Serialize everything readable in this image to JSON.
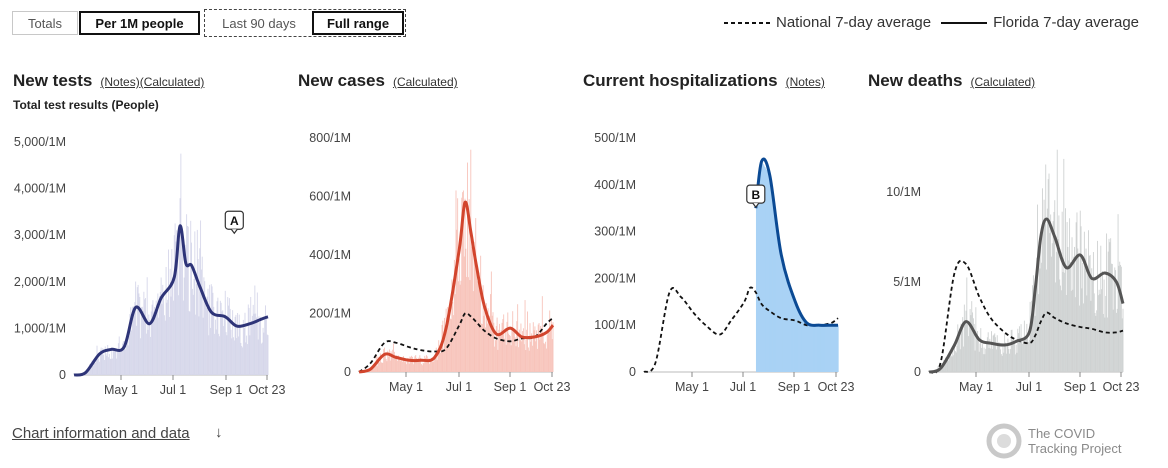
{
  "controls": {
    "metric_toggle": [
      {
        "label": "Totals",
        "selected": false
      },
      {
        "label": "Per 1M people",
        "selected": true
      }
    ],
    "range_toggle": [
      {
        "label": "Last 90 days",
        "selected": false
      },
      {
        "label": "Full range",
        "selected": true
      }
    ]
  },
  "legend": {
    "national": "National 7-day average",
    "state": "Florida 7-day average"
  },
  "panels": {
    "tests": {
      "title": "New tests",
      "notes": "(Notes)",
      "calc": "(Calculated)",
      "subtitle": "Total test results (People)",
      "marker": "A"
    },
    "cases": {
      "title": "New cases",
      "calc": "(Calculated)"
    },
    "hosp": {
      "title": "Current hospitalizations",
      "notes": "(Notes)",
      "marker": "B"
    },
    "deaths": {
      "title": "New deaths",
      "calc": "(Calculated)"
    }
  },
  "footer": {
    "link": "Chart information and data",
    "arrow": "↓",
    "brand_line1": "The COVID",
    "brand_line2": "Tracking Project"
  },
  "colors": {
    "tests": "#2e3478",
    "tests_bar": "#d6d7ea",
    "cases": "#d2452d",
    "cases_bar": "#f7c4bb",
    "hosp": "#0b4a94",
    "hosp_bar": "#a9d2f5",
    "deaths": "#555555",
    "deaths_bar": "#cfd2d2",
    "national": "#111111"
  },
  "chart_data": [
    {
      "type": "line",
      "title": "New tests",
      "x_ticks": [
        "May 1",
        "Jul 1",
        "Sep 1",
        "Oct 23"
      ],
      "y_ticks": [
        "0",
        "1,000/1M",
        "2,000/1M",
        "3,000/1M",
        "4,000/1M",
        "5,000/1M"
      ],
      "ylim": [
        0,
        5000
      ],
      "x": [
        "Mar 1",
        "Mar 15",
        "Apr 1",
        "Apr 15",
        "May 1",
        "May 15",
        "Jun 1",
        "Jun 15",
        "Jul 1",
        "Jul 8",
        "Jul 15",
        "Jul 22",
        "Aug 1",
        "Aug 15",
        "Sep 1",
        "Sep 15",
        "Oct 1",
        "Oct 15",
        "Oct 23"
      ],
      "series": [
        {
          "name": "Florida 7-day average",
          "values": [
            0,
            50,
            450,
            550,
            600,
            1450,
            1100,
            1650,
            2100,
            3200,
            2400,
            2350,
            1900,
            1350,
            1250,
            1050,
            1100,
            1200,
            1250
          ]
        }
      ]
    },
    {
      "type": "line",
      "title": "New cases",
      "x_ticks": [
        "May 1",
        "Jul 1",
        "Sep 1",
        "Oct 23"
      ],
      "y_ticks": [
        "0",
        "200/1M",
        "400/1M",
        "600/1M",
        "800/1M"
      ],
      "ylim": [
        0,
        800
      ],
      "x": [
        "Mar 1",
        "Mar 15",
        "Apr 1",
        "Apr 15",
        "May 1",
        "May 15",
        "Jun 1",
        "Jun 15",
        "Jul 1",
        "Jul 8",
        "Jul 15",
        "Jul 22",
        "Aug 1",
        "Aug 15",
        "Sep 1",
        "Sep 15",
        "Oct 1",
        "Oct 15",
        "Oct 23"
      ],
      "series": [
        {
          "name": "Florida 7-day average",
          "values": [
            0,
            10,
            60,
            50,
            40,
            40,
            50,
            150,
            420,
            580,
            480,
            360,
            220,
            130,
            150,
            120,
            120,
            135,
            160
          ]
        },
        {
          "name": "National 7-day average",
          "values": [
            0,
            30,
            100,
            100,
            85,
            75,
            70,
            80,
            160,
            200,
            190,
            170,
            140,
            115,
            105,
            115,
            120,
            165,
            185
          ]
        }
      ]
    },
    {
      "type": "line",
      "title": "Current hospitalizations",
      "x_ticks": [
        "May 1",
        "Jul 1",
        "Sep 1",
        "Oct 23"
      ],
      "y_ticks": [
        "0",
        "100/1M",
        "200/1M",
        "300/1M",
        "400/1M",
        "500/1M"
      ],
      "ylim": [
        0,
        500
      ],
      "x": [
        "Mar 1",
        "Mar 15",
        "Apr 1",
        "Apr 15",
        "May 1",
        "May 15",
        "Jun 1",
        "Jun 15",
        "Jul 1",
        "Jul 8",
        "Jul 15",
        "Jul 22",
        "Aug 1",
        "Aug 15",
        "Sep 1",
        "Sep 15",
        "Oct 1",
        "Oct 15",
        "Oct 23"
      ],
      "series": [
        {
          "name": "Florida 7-day average",
          "values": [
            null,
            null,
            null,
            null,
            null,
            null,
            null,
            null,
            null,
            null,
            350,
            450,
            420,
            250,
            150,
            105,
            100,
            100,
            100
          ]
        },
        {
          "name": "National 7-day average",
          "values": [
            0,
            20,
            170,
            160,
            125,
            100,
            80,
            110,
            150,
            180,
            170,
            145,
            130,
            115,
            110,
            100,
            100,
            105,
            115
          ]
        }
      ]
    },
    {
      "type": "line",
      "title": "New deaths",
      "x_ticks": [
        "May 1",
        "Jul 1",
        "Sep 1",
        "Oct 23"
      ],
      "y_ticks": [
        "0",
        "5/1M",
        "10/1M"
      ],
      "ylim": [
        0,
        13
      ],
      "x": [
        "Mar 1",
        "Mar 15",
        "Apr 1",
        "Apr 15",
        "May 1",
        "May 15",
        "Jun 1",
        "Jun 15",
        "Jul 1",
        "Jul 8",
        "Jul 15",
        "Jul 22",
        "Aug 1",
        "Aug 15",
        "Sep 1",
        "Sep 15",
        "Oct 1",
        "Oct 15",
        "Oct 23"
      ],
      "series": [
        {
          "name": "Florida 7-day average",
          "values": [
            0,
            0.2,
            1.5,
            2.8,
            1.8,
            1.6,
            1.5,
            1.7,
            2.2,
            4.5,
            7.5,
            8.5,
            7.5,
            5.8,
            6.5,
            5.2,
            5.5,
            5.0,
            3.8
          ]
        },
        {
          "name": "National 7-day average",
          "values": [
            0,
            0.5,
            5.5,
            6.0,
            4.2,
            3.0,
            2.2,
            1.8,
            1.6,
            2.0,
            2.8,
            3.3,
            3.0,
            2.7,
            2.5,
            2.4,
            2.2,
            2.2,
            2.3
          ]
        }
      ]
    }
  ]
}
